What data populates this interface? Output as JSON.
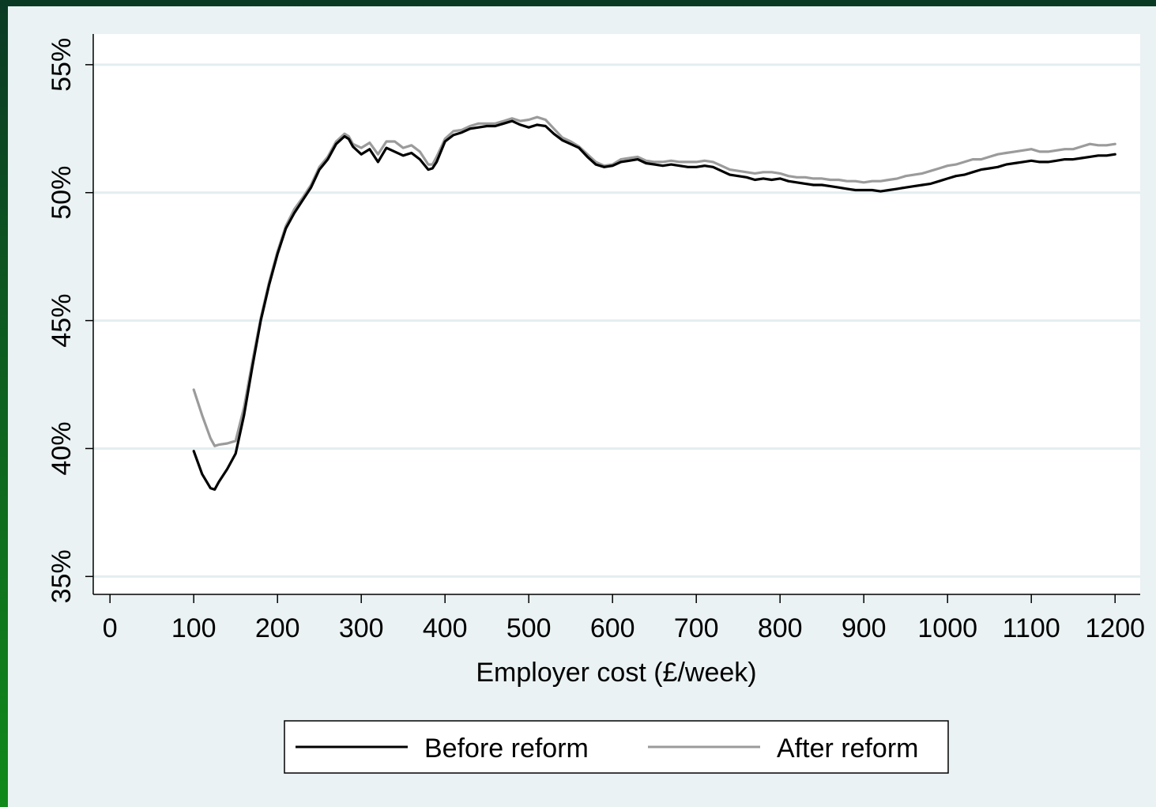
{
  "colors": {
    "background": "#eaf2f3",
    "plot_background": "#ffffff",
    "gridline": "#e3eef0",
    "border_green_dark": "#0b3a24",
    "border_green_light": "#118a1a",
    "before_line": "#000000",
    "after_line": "#9b9b9b"
  },
  "chart_data": {
    "type": "line",
    "title": "",
    "xlabel": "Employer cost (£/week)",
    "ylabel": "",
    "xlim": [
      -20,
      1230
    ],
    "ylim": [
      34.3,
      56.2
    ],
    "x_ticks": [
      0,
      100,
      200,
      300,
      400,
      500,
      600,
      700,
      800,
      900,
      1000,
      1100,
      1200
    ],
    "x_tick_labels": [
      "0",
      "100",
      "200",
      "300",
      "400",
      "500",
      "600",
      "700",
      "800",
      "900",
      "1000",
      "1100",
      "1200"
    ],
    "y_ticks": [
      35,
      40,
      45,
      50,
      55
    ],
    "y_tick_labels": [
      "35%",
      "40%",
      "45%",
      "50%",
      "55%"
    ],
    "grid": "horizontal",
    "legend": {
      "position": "bottom",
      "entries": [
        "Before reform",
        "After reform"
      ]
    },
    "series": [
      {
        "name": "Before reform",
        "color": "#000000",
        "x": [
          100,
          110,
          120,
          125,
          130,
          140,
          150,
          160,
          170,
          180,
          190,
          200,
          210,
          220,
          230,
          240,
          250,
          260,
          270,
          280,
          285,
          290,
          300,
          310,
          320,
          330,
          340,
          350,
          360,
          370,
          380,
          385,
          390,
          400,
          410,
          420,
          430,
          440,
          450,
          460,
          470,
          480,
          490,
          500,
          510,
          520,
          530,
          540,
          550,
          560,
          570,
          580,
          590,
          600,
          610,
          620,
          630,
          640,
          650,
          660,
          670,
          680,
          690,
          700,
          710,
          720,
          730,
          740,
          750,
          760,
          770,
          780,
          790,
          800,
          810,
          820,
          830,
          840,
          850,
          860,
          870,
          880,
          890,
          900,
          910,
          920,
          930,
          940,
          950,
          960,
          970,
          980,
          990,
          1000,
          1010,
          1020,
          1030,
          1040,
          1050,
          1060,
          1070,
          1080,
          1090,
          1100,
          1110,
          1120,
          1130,
          1140,
          1150,
          1160,
          1170,
          1180,
          1190,
          1200
        ],
        "y": [
          39.9,
          39.0,
          38.45,
          38.4,
          38.7,
          39.2,
          39.8,
          41.3,
          43.2,
          45.0,
          46.4,
          47.6,
          48.6,
          49.2,
          49.7,
          50.2,
          50.9,
          51.3,
          51.9,
          52.2,
          52.1,
          51.8,
          51.5,
          51.7,
          51.2,
          51.75,
          51.6,
          51.45,
          51.55,
          51.3,
          50.9,
          50.95,
          51.2,
          52.0,
          52.25,
          52.35,
          52.5,
          52.55,
          52.6,
          52.6,
          52.7,
          52.8,
          52.65,
          52.55,
          52.65,
          52.6,
          52.3,
          52.05,
          51.9,
          51.75,
          51.4,
          51.1,
          51.0,
          51.05,
          51.2,
          51.25,
          51.3,
          51.15,
          51.1,
          51.05,
          51.1,
          51.05,
          51.0,
          51.0,
          51.05,
          51.0,
          50.85,
          50.7,
          50.65,
          50.6,
          50.5,
          50.55,
          50.5,
          50.55,
          50.45,
          50.4,
          50.35,
          50.3,
          50.3,
          50.25,
          50.2,
          50.15,
          50.1,
          50.1,
          50.1,
          50.05,
          50.1,
          50.15,
          50.2,
          50.25,
          50.3,
          50.35,
          50.45,
          50.55,
          50.65,
          50.7,
          50.8,
          50.9,
          50.95,
          51.0,
          51.1,
          51.15,
          51.2,
          51.25,
          51.2,
          51.2,
          51.25,
          51.3,
          51.3,
          51.35,
          51.4,
          51.45,
          51.45,
          51.5
        ]
      },
      {
        "name": "After reform",
        "color": "#9b9b9b",
        "x": [
          100,
          110,
          120,
          125,
          130,
          140,
          150,
          160,
          170,
          180,
          190,
          200,
          210,
          220,
          230,
          240,
          250,
          260,
          270,
          280,
          285,
          290,
          300,
          310,
          320,
          330,
          340,
          350,
          360,
          370,
          380,
          385,
          390,
          400,
          410,
          420,
          430,
          440,
          450,
          460,
          470,
          480,
          490,
          500,
          510,
          520,
          530,
          540,
          550,
          560,
          570,
          580,
          590,
          600,
          610,
          620,
          630,
          640,
          650,
          660,
          670,
          680,
          690,
          700,
          710,
          720,
          730,
          740,
          750,
          760,
          770,
          780,
          790,
          800,
          810,
          820,
          830,
          840,
          850,
          860,
          870,
          880,
          890,
          900,
          910,
          920,
          930,
          940,
          950,
          960,
          970,
          980,
          990,
          1000,
          1010,
          1020,
          1030,
          1040,
          1050,
          1060,
          1070,
          1080,
          1090,
          1100,
          1110,
          1120,
          1130,
          1140,
          1150,
          1160,
          1170,
          1180,
          1190,
          1200
        ],
        "y": [
          42.3,
          41.3,
          40.4,
          40.1,
          40.15,
          40.2,
          40.3,
          41.6,
          43.4,
          45.1,
          46.5,
          47.7,
          48.7,
          49.35,
          49.8,
          50.3,
          51.0,
          51.4,
          52.0,
          52.3,
          52.2,
          51.9,
          51.75,
          51.95,
          51.5,
          52.0,
          52.0,
          51.75,
          51.85,
          51.6,
          51.1,
          51.1,
          51.4,
          52.1,
          52.4,
          52.45,
          52.6,
          52.7,
          52.7,
          52.7,
          52.8,
          52.9,
          52.8,
          52.85,
          52.95,
          52.85,
          52.5,
          52.15,
          52.0,
          51.8,
          51.5,
          51.2,
          51.05,
          51.1,
          51.3,
          51.35,
          51.4,
          51.25,
          51.2,
          51.2,
          51.25,
          51.2,
          51.2,
          51.2,
          51.25,
          51.2,
          51.05,
          50.9,
          50.85,
          50.8,
          50.75,
          50.8,
          50.8,
          50.75,
          50.65,
          50.6,
          50.6,
          50.55,
          50.55,
          50.5,
          50.5,
          50.45,
          50.45,
          50.4,
          50.45,
          50.45,
          50.5,
          50.55,
          50.65,
          50.7,
          50.75,
          50.85,
          50.95,
          51.05,
          51.1,
          51.2,
          51.3,
          51.3,
          51.4,
          51.5,
          51.55,
          51.6,
          51.65,
          51.7,
          51.6,
          51.6,
          51.65,
          51.7,
          51.7,
          51.8,
          51.9,
          51.85,
          51.85,
          51.9
        ]
      }
    ]
  }
}
